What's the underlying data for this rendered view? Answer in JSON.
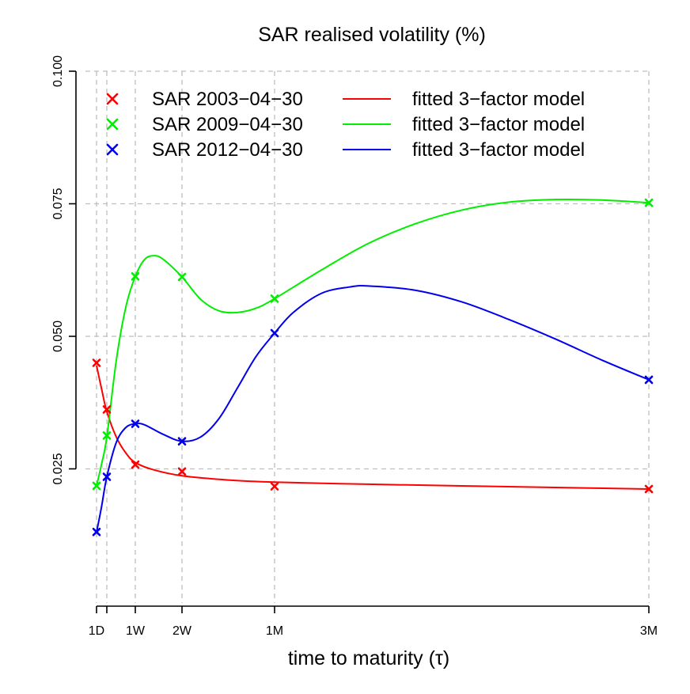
{
  "chart_data": {
    "type": "line",
    "title": "SAR realised volatility (%)",
    "xlabel": "time to maturity (τ)",
    "ylabel": "",
    "x_unit": "days",
    "x_ticks": [
      {
        "label": "1D",
        "value": 1
      },
      {
        "label": "",
        "value": 2
      },
      {
        "label": "1W",
        "value": 5
      },
      {
        "label": "2W",
        "value": 10
      },
      {
        "label": "1M",
        "value": 20
      },
      {
        "label": "3M",
        "value": 60
      }
    ],
    "y_ticks": [
      "0.025",
      "0.050",
      "0.075",
      "0.100"
    ],
    "xlim": [
      1,
      60
    ],
    "ylim": [
      0,
      0.1
    ],
    "grid": true,
    "legend_position": "top-left",
    "series": [
      {
        "name": "SAR 2003−04−30",
        "fit_name": "fitted 3−factor model",
        "color": "#ff0000",
        "points": [
          [
            1,
            0.045
          ],
          [
            2,
            0.0362
          ],
          [
            5,
            0.0258
          ],
          [
            10,
            0.0245
          ],
          [
            20,
            0.0217
          ],
          [
            60,
            0.0212
          ]
        ],
        "fit": [
          [
            1,
            0.0445
          ],
          [
            1.5,
            0.04
          ],
          [
            2,
            0.0358
          ],
          [
            3,
            0.031
          ],
          [
            4,
            0.028
          ],
          [
            5,
            0.0262
          ],
          [
            7,
            0.0248
          ],
          [
            10,
            0.0237
          ],
          [
            15,
            0.0229
          ],
          [
            20,
            0.0225
          ],
          [
            30,
            0.0221
          ],
          [
            40,
            0.0218
          ],
          [
            50,
            0.0215
          ],
          [
            60,
            0.0212
          ]
        ]
      },
      {
        "name": "SAR 2009−04−30",
        "fit_name": "fitted 3−factor model",
        "color": "#00ee00",
        "points": [
          [
            1,
            0.0218
          ],
          [
            2,
            0.0313
          ],
          [
            5,
            0.0613
          ],
          [
            10,
            0.0612
          ],
          [
            20,
            0.0571
          ],
          [
            60,
            0.0752
          ]
        ],
        "fit": [
          [
            1,
            0.0218
          ],
          [
            1.5,
            0.026
          ],
          [
            2,
            0.031
          ],
          [
            3,
            0.0455
          ],
          [
            4,
            0.0555
          ],
          [
            5,
            0.0613
          ],
          [
            6,
            0.0645
          ],
          [
            7,
            0.0652
          ],
          [
            8,
            0.0645
          ],
          [
            10,
            0.0612
          ],
          [
            12,
            0.057
          ],
          [
            14,
            0.0548
          ],
          [
            16,
            0.0545
          ],
          [
            18,
            0.0553
          ],
          [
            20,
            0.0571
          ],
          [
            25,
            0.0625
          ],
          [
            30,
            0.0675
          ],
          [
            35,
            0.0712
          ],
          [
            40,
            0.0738
          ],
          [
            45,
            0.0753
          ],
          [
            50,
            0.0758
          ],
          [
            55,
            0.0757
          ],
          [
            60,
            0.0752
          ]
        ]
      },
      {
        "name": "SAR 2012−04−30",
        "fit_name": "fitted 3−factor model",
        "color": "#0000ee",
        "points": [
          [
            1,
            0.0131
          ],
          [
            2,
            0.0235
          ],
          [
            5,
            0.0335
          ],
          [
            10,
            0.0302
          ],
          [
            20,
            0.0506
          ],
          [
            60,
            0.0418
          ]
        ],
        "fit": [
          [
            1,
            0.013
          ],
          [
            1.5,
            0.018
          ],
          [
            2,
            0.0235
          ],
          [
            3,
            0.03
          ],
          [
            4,
            0.0328
          ],
          [
            5,
            0.0335
          ],
          [
            6,
            0.0333
          ],
          [
            8,
            0.0315
          ],
          [
            10,
            0.0302
          ],
          [
            12,
            0.031
          ],
          [
            14,
            0.0345
          ],
          [
            16,
            0.0403
          ],
          [
            18,
            0.0462
          ],
          [
            20,
            0.0506
          ],
          [
            22,
            0.0545
          ],
          [
            25,
            0.0581
          ],
          [
            28,
            0.0593
          ],
          [
            30,
            0.0595
          ],
          [
            35,
            0.0587
          ],
          [
            40,
            0.0565
          ],
          [
            45,
            0.0532
          ],
          [
            50,
            0.0495
          ],
          [
            55,
            0.0455
          ],
          [
            60,
            0.0418
          ]
        ]
      }
    ]
  }
}
